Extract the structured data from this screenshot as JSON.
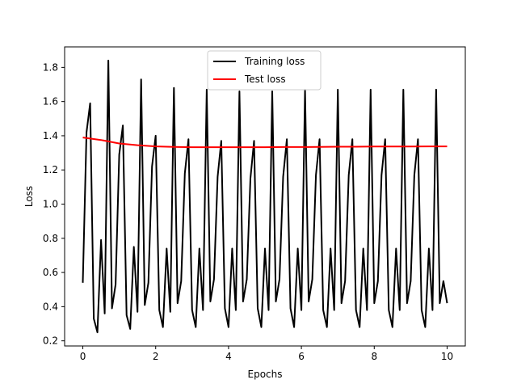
{
  "chart_data": {
    "type": "line",
    "title": "",
    "xlabel": "Epochs",
    "ylabel": "Loss",
    "xlim": [
      -0.5,
      10.5
    ],
    "ylim": [
      0.17,
      1.92
    ],
    "xticks": [
      0,
      2,
      4,
      6,
      8,
      10
    ],
    "xtick_labels": [
      "0",
      "2",
      "4",
      "6",
      "8",
      "10"
    ],
    "yticks": [
      0.2,
      0.4,
      0.6,
      0.8,
      1.0,
      1.2,
      1.4,
      1.6,
      1.8
    ],
    "ytick_labels": [
      "0.2",
      "0.4",
      "0.6",
      "0.8",
      "1.0",
      "1.2",
      "1.4",
      "1.6",
      "1.8"
    ],
    "grid": false,
    "legend_position": "top-center",
    "series": [
      {
        "name": "Training loss",
        "color": "#000000",
        "x": [
          0.0,
          0.1,
          0.2,
          0.3,
          0.4,
          0.5,
          0.6,
          0.7,
          0.8,
          0.9,
          1.0,
          1.1,
          1.2,
          1.3,
          1.4,
          1.5,
          1.6,
          1.7,
          1.8,
          1.9,
          2.0,
          2.1,
          2.2,
          2.3,
          2.4,
          2.5,
          2.6,
          2.7,
          2.8,
          2.9,
          3.0,
          3.1,
          3.2,
          3.3,
          3.4,
          3.5,
          3.6,
          3.7,
          3.8,
          3.9,
          4.0,
          4.1,
          4.2,
          4.3,
          4.4,
          4.5,
          4.6,
          4.7,
          4.8,
          4.9,
          5.0,
          5.1,
          5.2,
          5.3,
          5.4,
          5.5,
          5.6,
          5.7,
          5.8,
          5.9,
          6.0,
          6.1,
          6.2,
          6.3,
          6.4,
          6.5,
          6.6,
          6.7,
          6.8,
          6.9,
          7.0,
          7.1,
          7.2,
          7.3,
          7.4,
          7.5,
          7.6,
          7.7,
          7.8,
          7.9,
          8.0,
          8.1,
          8.2,
          8.3,
          8.4,
          8.5,
          8.6,
          8.7,
          8.8,
          8.9,
          9.0,
          9.1,
          9.2,
          9.3,
          9.4,
          9.5,
          9.6,
          9.7,
          9.8,
          9.9,
          10.0
        ],
        "y": [
          0.54,
          1.42,
          1.59,
          0.33,
          0.25,
          0.79,
          0.36,
          1.84,
          0.39,
          0.53,
          1.29,
          1.46,
          0.35,
          0.27,
          0.75,
          0.37,
          1.73,
          0.41,
          0.54,
          1.22,
          1.4,
          0.38,
          0.28,
          0.74,
          0.37,
          1.68,
          0.42,
          0.55,
          1.18,
          1.38,
          0.38,
          0.28,
          0.74,
          0.38,
          1.67,
          0.43,
          0.56,
          1.16,
          1.37,
          0.39,
          0.28,
          0.74,
          0.38,
          1.66,
          0.43,
          0.56,
          1.15,
          1.37,
          0.39,
          0.28,
          0.74,
          0.38,
          1.66,
          0.43,
          0.56,
          1.16,
          1.38,
          0.39,
          0.28,
          0.74,
          0.38,
          1.67,
          0.43,
          0.56,
          1.17,
          1.38,
          0.38,
          0.28,
          0.74,
          0.38,
          1.67,
          0.42,
          0.55,
          1.17,
          1.38,
          0.38,
          0.28,
          0.74,
          0.38,
          1.67,
          0.42,
          0.55,
          1.17,
          1.38,
          0.38,
          0.28,
          0.74,
          0.38,
          1.67,
          0.42,
          0.55,
          1.17,
          1.38,
          0.38,
          0.28,
          0.74,
          0.38,
          1.67,
          0.42,
          0.55,
          0.42
        ]
      },
      {
        "name": "Test loss",
        "color": "#ff0000",
        "x": [
          0.0,
          0.5,
          1.0,
          1.5,
          2.0,
          2.5,
          3.0,
          3.5,
          4.0,
          4.5,
          5.0,
          5.5,
          6.0,
          6.5,
          7.0,
          7.5,
          8.0,
          8.5,
          9.0,
          9.5,
          10.0
        ],
        "y": [
          1.39,
          1.375,
          1.355,
          1.345,
          1.338,
          1.335,
          1.333,
          1.333,
          1.333,
          1.333,
          1.333,
          1.334,
          1.334,
          1.335,
          1.336,
          1.336,
          1.337,
          1.337,
          1.337,
          1.338,
          1.338
        ]
      }
    ]
  }
}
